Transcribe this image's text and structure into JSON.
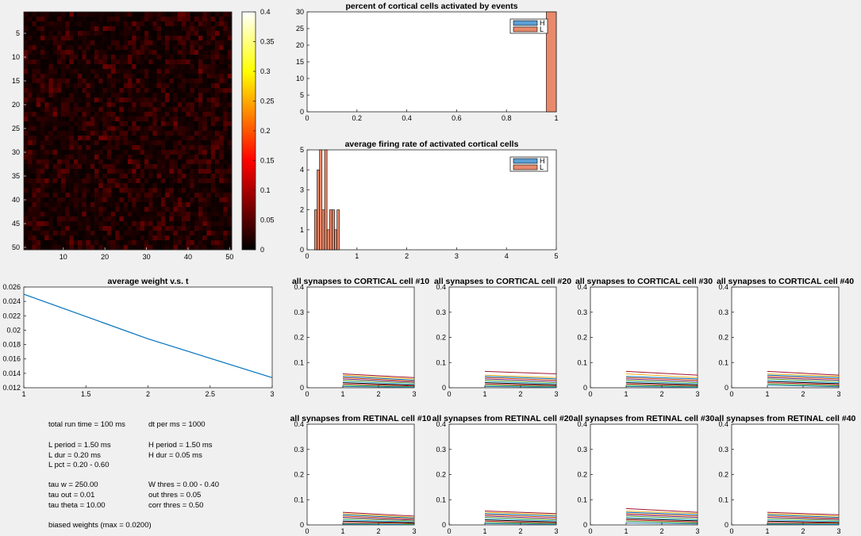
{
  "chart_data": [
    {
      "id": "heatmap",
      "type": "heatmap",
      "x_ticks": [
        "10",
        "20",
        "30",
        "40",
        "50"
      ],
      "y_ticks": [
        "5",
        "10",
        "15",
        "20",
        "25",
        "30",
        "35",
        "40",
        "45",
        "50"
      ],
      "rows": 50,
      "cols": 50,
      "value_range": [
        0,
        0.4
      ],
      "colorbar_ticks": [
        "0",
        "0.05",
        "0.1",
        "0.15",
        "0.2",
        "0.25",
        "0.3",
        "0.35",
        "0.4"
      ],
      "colormap": "hot",
      "typical_values": [
        0.005,
        0.07
      ]
    },
    {
      "id": "pct",
      "type": "bar",
      "title": "percent of cortical cells activated by events",
      "xlim": [
        0,
        1
      ],
      "ylim": [
        0,
        30
      ],
      "x_ticks": [
        "0",
        "0.2",
        "0.4",
        "0.6",
        "0.8",
        "1"
      ],
      "y_ticks": [
        "0",
        "5",
        "10",
        "15",
        "20",
        "25",
        "30"
      ],
      "legend": [
        "H",
        "L"
      ],
      "legend_colors": [
        "#5c9fd6",
        "#e8896a"
      ],
      "bars": [
        {
          "x0": 0.96,
          "x1": 1.0,
          "value": 30,
          "series": "L"
        }
      ]
    },
    {
      "id": "rate",
      "type": "bar",
      "title": "average firing rate of activated cortical cells",
      "xlim": [
        0,
        5
      ],
      "ylim": [
        0,
        5
      ],
      "x_ticks": [
        "0",
        "1",
        "2",
        "3",
        "4",
        "5"
      ],
      "y_ticks": [
        "0",
        "1",
        "2",
        "3",
        "4",
        "5"
      ],
      "legend": [
        "H",
        "L"
      ],
      "legend_colors": [
        "#5c9fd6",
        "#e8896a"
      ],
      "bars": [
        {
          "x0": 0.15,
          "x1": 0.2,
          "value": 2
        },
        {
          "x0": 0.2,
          "x1": 0.25,
          "value": 4
        },
        {
          "x0": 0.25,
          "x1": 0.3,
          "value": 5
        },
        {
          "x0": 0.3,
          "x1": 0.35,
          "value": 2
        },
        {
          "x0": 0.35,
          "x1": 0.4,
          "value": 5
        },
        {
          "x0": 0.4,
          "x1": 0.45,
          "value": 1
        },
        {
          "x0": 0.45,
          "x1": 0.5,
          "value": 2
        },
        {
          "x0": 0.5,
          "x1": 0.55,
          "value": 2
        },
        {
          "x0": 0.55,
          "x1": 0.6,
          "value": 1
        },
        {
          "x0": 0.6,
          "x1": 0.65,
          "value": 2
        }
      ]
    },
    {
      "id": "avgw",
      "type": "line",
      "title": "average weight v.s. t",
      "xlim": [
        1,
        3
      ],
      "ylim": [
        0.012,
        0.026
      ],
      "x_ticks": [
        "1",
        "1.5",
        "2",
        "2.5",
        "3"
      ],
      "y_ticks": [
        "0.012",
        "0.014",
        "0.016",
        "0.018",
        "0.02",
        "0.022",
        "0.024",
        "0.026"
      ],
      "x": [
        1,
        2,
        3
      ],
      "y": [
        0.025,
        0.0188,
        0.0134
      ],
      "color": "#0072bd"
    },
    {
      "id": "c10",
      "type": "line",
      "title": "all synapses to CORTICAL cell #10",
      "xlim": [
        0,
        3
      ],
      "ylim": [
        0,
        0.4
      ],
      "x_ticks": [
        "0",
        "1",
        "2",
        "3"
      ],
      "y_ticks": [
        "0",
        "0.1",
        "0.2",
        "0.3",
        "0.4"
      ],
      "series_start": [
        0.055,
        0.05,
        0.045,
        0.04,
        0.035,
        0.03,
        0.025,
        0.02,
        0.015,
        0.01,
        0.005
      ],
      "series_end": [
        0.04,
        0.035,
        0.03,
        0.026,
        0.022,
        0.018,
        0.014,
        0.01,
        0.007,
        0.004,
        0.002
      ]
    },
    {
      "id": "c20",
      "type": "line",
      "title": "all synapses to CORTICAL cell #20",
      "xlim": [
        0,
        3
      ],
      "ylim": [
        0,
        0.4
      ],
      "x_ticks": [
        "0",
        "1",
        "2",
        "3"
      ],
      "y_ticks": [
        "0",
        "0.1",
        "0.2",
        "0.3",
        "0.4"
      ],
      "series_start": [
        0.065,
        0.05,
        0.045,
        0.04,
        0.035,
        0.03,
        0.025,
        0.02,
        0.015,
        0.01,
        0.005
      ],
      "series_end": [
        0.055,
        0.04,
        0.035,
        0.03,
        0.025,
        0.02,
        0.016,
        0.012,
        0.008,
        0.005,
        0.002
      ]
    },
    {
      "id": "c30",
      "type": "line",
      "title": "all synapses to CORTICAL cell #30",
      "xlim": [
        0,
        3
      ],
      "ylim": [
        0,
        0.4
      ],
      "x_ticks": [
        "0",
        "1",
        "2",
        "3"
      ],
      "y_ticks": [
        "0",
        "0.1",
        "0.2",
        "0.3",
        "0.4"
      ],
      "series_start": [
        0.065,
        0.055,
        0.045,
        0.04,
        0.035,
        0.03,
        0.025,
        0.02,
        0.015,
        0.01,
        0.005
      ],
      "series_end": [
        0.05,
        0.04,
        0.035,
        0.03,
        0.025,
        0.02,
        0.016,
        0.012,
        0.008,
        0.005,
        0.002
      ]
    },
    {
      "id": "c40",
      "type": "line",
      "title": "all synapses to CORTICAL cell #40",
      "xlim": [
        0,
        3
      ],
      "ylim": [
        0,
        0.4
      ],
      "x_ticks": [
        "0",
        "1",
        "2",
        "3"
      ],
      "y_ticks": [
        "0",
        "0.1",
        "0.2",
        "0.3",
        "0.4"
      ],
      "series_start": [
        0.065,
        0.055,
        0.05,
        0.045,
        0.04,
        0.035,
        0.03,
        0.025,
        0.02,
        0.015,
        0.01
      ],
      "series_end": [
        0.05,
        0.045,
        0.04,
        0.035,
        0.03,
        0.025,
        0.02,
        0.016,
        0.012,
        0.008,
        0.004
      ]
    },
    {
      "id": "r10",
      "type": "line",
      "title": "all synapses from RETINAL cell #10",
      "xlim": [
        0,
        3
      ],
      "ylim": [
        0,
        0.4
      ],
      "x_ticks": [
        "0",
        "1",
        "2",
        "3"
      ],
      "y_ticks": [
        "0",
        "0.1",
        "0.2",
        "0.3",
        "0.4"
      ],
      "series_start": [
        0.05,
        0.045,
        0.04,
        0.035,
        0.03,
        0.025,
        0.02,
        0.015,
        0.01,
        0.005,
        0.003
      ],
      "series_end": [
        0.035,
        0.03,
        0.027,
        0.023,
        0.019,
        0.016,
        0.012,
        0.009,
        0.006,
        0.003,
        0.001
      ]
    },
    {
      "id": "r20",
      "type": "line",
      "title": "all synapses from RETINAL cell #20",
      "xlim": [
        0,
        3
      ],
      "ylim": [
        0,
        0.4
      ],
      "x_ticks": [
        "0",
        "1",
        "2",
        "3"
      ],
      "y_ticks": [
        "0",
        "0.1",
        "0.2",
        "0.3",
        "0.4"
      ],
      "series_start": [
        0.055,
        0.05,
        0.045,
        0.04,
        0.035,
        0.03,
        0.025,
        0.02,
        0.015,
        0.01,
        0.005
      ],
      "series_end": [
        0.045,
        0.04,
        0.035,
        0.03,
        0.025,
        0.02,
        0.016,
        0.012,
        0.008,
        0.005,
        0.002
      ]
    },
    {
      "id": "r30",
      "type": "line",
      "title": "all synapses from RETINAL cell #30",
      "xlim": [
        0,
        3
      ],
      "ylim": [
        0,
        0.4
      ],
      "x_ticks": [
        "0",
        "1",
        "2",
        "3"
      ],
      "y_ticks": [
        "0",
        "0.1",
        "0.2",
        "0.3",
        "0.4"
      ],
      "series_start": [
        0.065,
        0.055,
        0.05,
        0.045,
        0.04,
        0.035,
        0.03,
        0.025,
        0.02,
        0.015,
        0.008
      ],
      "series_end": [
        0.05,
        0.045,
        0.04,
        0.035,
        0.03,
        0.025,
        0.02,
        0.016,
        0.012,
        0.008,
        0.004
      ]
    },
    {
      "id": "r40",
      "type": "line",
      "title": "all synapses from RETINAL cell #40",
      "xlim": [
        0,
        3
      ],
      "ylim": [
        0,
        0.4
      ],
      "x_ticks": [
        "0",
        "1",
        "2",
        "3"
      ],
      "y_ticks": [
        "0",
        "0.1",
        "0.2",
        "0.3",
        "0.4"
      ],
      "series_start": [
        0.05,
        0.045,
        0.04,
        0.035,
        0.03,
        0.025,
        0.02,
        0.015,
        0.01,
        0.005,
        0.003
      ],
      "series_end": [
        0.04,
        0.035,
        0.03,
        0.026,
        0.022,
        0.018,
        0.014,
        0.01,
        0.007,
        0.004,
        0.002
      ]
    }
  ],
  "line_colors": [
    "#a2142f",
    "#edb120",
    "#0072bd",
    "#d95319",
    "#7e2f8e",
    "#77ac30",
    "#4dbeee",
    "#000000",
    "#d62728",
    "#2ca02c",
    "#1f77b4"
  ],
  "info": {
    "run_time": "total run time = 100 ms",
    "dt": "dt per ms = 1000",
    "l_period": "L period = 1.50 ms",
    "h_period": "H period = 1.50 ms",
    "l_dur": "L dur = 0.20 ms",
    "h_dur": "H dur = 0.05 ms",
    "l_pct": "L pct = 0.20 - 0.60",
    "tau_w": "tau w = 250.00",
    "w_thres": "W thres = 0.00 - 0.40",
    "tau_out": "tau out = 0.01",
    "out_thres": "out thres = 0.05",
    "tau_theta": "tau theta = 10.00",
    "corr_thres": "corr thres = 0.50",
    "biased": "biased weights (max = 0.0200)"
  }
}
